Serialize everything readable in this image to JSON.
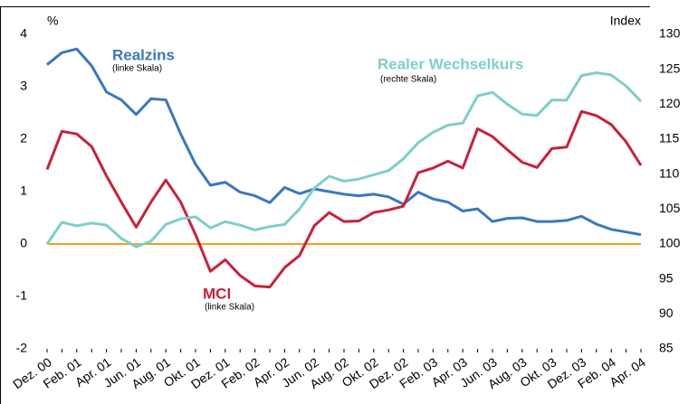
{
  "chart_data": {
    "type": "line",
    "y_label": "%",
    "y2_label": "Index",
    "categories": [
      "Dez. 00",
      null,
      "Feb. 01",
      null,
      "Apr. 01",
      null,
      "Jun. 01",
      null,
      "Aug. 01",
      null,
      "Okt. 01",
      null,
      "Dez. 01",
      null,
      "Feb. 02",
      null,
      "Apr. 02",
      null,
      "Jun. 02",
      null,
      "Aug. 02",
      null,
      "Okt. 02",
      null,
      "Dez. 02",
      null,
      "Feb. 03",
      null,
      "Apr. 03",
      null,
      "Jun. 03",
      null,
      "Aug. 03",
      null,
      "Okt. 03",
      null,
      "Dez. 03",
      null,
      "Feb. 04",
      null,
      "Apr. 04"
    ],
    "ylim": [
      -2,
      4
    ],
    "yticks": [
      -2,
      -1,
      0,
      1,
      2,
      3,
      4
    ],
    "y2lim": [
      85,
      130
    ],
    "y2ticks": [
      85,
      90,
      95,
      100,
      105,
      110,
      115,
      120,
      125,
      130
    ],
    "zero_line_color": "#f0a020",
    "series": [
      {
        "name": "Realzins",
        "note": "(linke Skala)",
        "color": "#3a78c0",
        "values": [
          3.42,
          3.65,
          3.72,
          3.4,
          2.9,
          2.75,
          2.47,
          2.77,
          2.75,
          2.1,
          1.52,
          1.12,
          1.18,
          0.99,
          0.92,
          0.79,
          1.08,
          0.96,
          1.05,
          1.0,
          0.95,
          0.92,
          0.95,
          0.9,
          0.76,
          0.99,
          0.86,
          0.8,
          0.63,
          0.67,
          0.43,
          0.49,
          0.5,
          0.43,
          0.43,
          0.45,
          0.53,
          0.38,
          0.28,
          0.23,
          0.18
        ]
      },
      {
        "name": "MCI",
        "note": "(linke Skala)",
        "color": "#c8213a",
        "values": [
          1.42,
          2.15,
          2.1,
          1.86,
          1.3,
          0.8,
          0.32,
          0.8,
          1.22,
          0.8,
          0.18,
          -0.52,
          -0.3,
          -0.6,
          -0.8,
          -0.82,
          -0.45,
          -0.22,
          0.35,
          0.6,
          0.43,
          0.44,
          0.6,
          0.65,
          0.72,
          1.36,
          1.45,
          1.58,
          1.45,
          2.2,
          2.05,
          1.8,
          1.56,
          1.46,
          1.82,
          1.85,
          2.53,
          2.45,
          2.28,
          1.95,
          1.5
        ]
      },
      {
        "name": "Realer Wechselkurs",
        "note": "(rechte Skala)",
        "color": "#7dcfca",
        "axis": "y2",
        "values": [
          100.0,
          103.1,
          102.6,
          103.0,
          102.7,
          100.8,
          99.6,
          100.4,
          102.8,
          103.6,
          103.9,
          102.3,
          103.2,
          102.7,
          102.0,
          102.5,
          102.8,
          105.0,
          108.0,
          109.7,
          109.0,
          109.3,
          109.9,
          110.5,
          112.2,
          114.5,
          116.0,
          117.0,
          117.3,
          121.2,
          121.7,
          120.0,
          118.6,
          118.4,
          120.6,
          120.6,
          124.1,
          124.5,
          124.2,
          122.6,
          120.4
        ]
      }
    ]
  }
}
